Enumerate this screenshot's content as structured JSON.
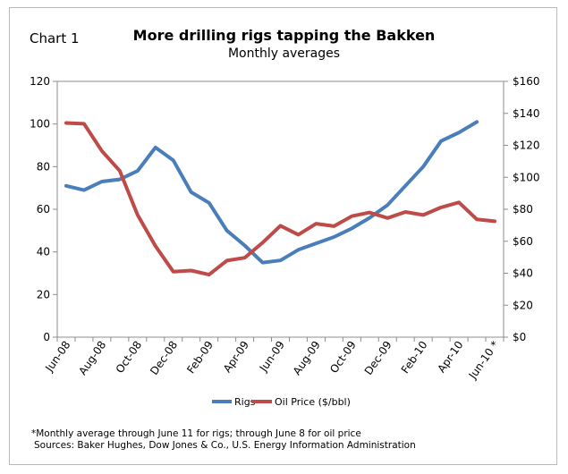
{
  "chart_label": "Chart 1",
  "footnote": "*Monthly average through June 11 for rigs; through June 8 for oil price",
  "sources": "Sources: Baker Hughes, Dow Jones & Co., U.S. Energy Information Administration",
  "colors": {
    "rigs": "#4a7ebb",
    "oil": "#be4b48",
    "plot_border": "#8c8c8c"
  },
  "chart_data": {
    "type": "line",
    "title": "More drilling rigs tapping the Bakken",
    "subtitle": "Monthly averages",
    "x": [
      "Jun-08",
      "Jul-08",
      "Aug-08",
      "Sep-08",
      "Oct-08",
      "Nov-08",
      "Dec-08",
      "Jan-09",
      "Feb-09",
      "Mar-09",
      "Apr-09",
      "May-09",
      "Jun-09",
      "Jul-09",
      "Aug-09",
      "Sep-09",
      "Oct-09",
      "Nov-09",
      "Dec-09",
      "Jan-10",
      "Feb-10",
      "Mar-10",
      "Apr-10",
      "May-10",
      "Jun-10 *"
    ],
    "tick_labels": [
      "Jun-08",
      "Aug-08",
      "Oct-08",
      "Dec-08",
      "Feb-09",
      "Apr-09",
      "Jun-09",
      "Aug-09",
      "Oct-09",
      "Dec-09",
      "Feb-10",
      "Apr-10",
      "Jun-10 *"
    ],
    "y_left": {
      "min": 0,
      "max": 120,
      "step": 20,
      "ticks": [
        "0",
        "20",
        "40",
        "60",
        "80",
        "100",
        "120"
      ]
    },
    "y_right": {
      "min": 0,
      "max": 160,
      "step": 20,
      "ticks": [
        "$0",
        "$20",
        "$40",
        "$60",
        "$80",
        "$100",
        "$120",
        "$140",
        "$160"
      ]
    },
    "series": [
      {
        "name": "Rigs",
        "axis": "left",
        "values": [
          71,
          69,
          73,
          74,
          78,
          89,
          83,
          68,
          63,
          50,
          43,
          35,
          36,
          41,
          44,
          47,
          51,
          56,
          62,
          71,
          80,
          92,
          96,
          101,
          null
        ]
      },
      {
        "name": "Oil Price ($/bbl)",
        "axis": "right",
        "values": [
          134,
          133.5,
          116.5,
          104,
          76.5,
          57,
          41,
          41.7,
          39.1,
          47.9,
          49.7,
          59.1,
          69.7,
          64.1,
          71,
          69.4,
          75.7,
          78,
          74.5,
          78.3,
          76.4,
          81.2,
          84.3,
          73.7,
          72.5
        ]
      }
    ],
    "grid": false,
    "legend_position": "bottom"
  }
}
